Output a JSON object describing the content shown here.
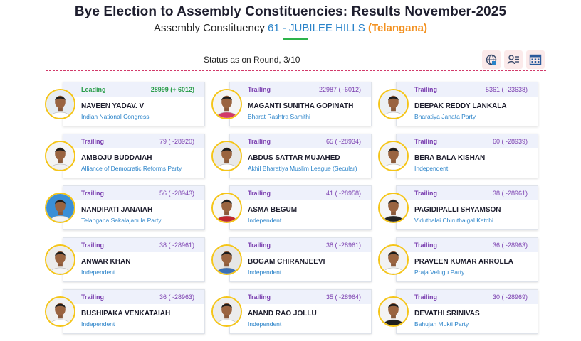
{
  "header": {
    "title": "Bye Election to Assembly Constituencies: Results November-2025",
    "subtitle_prefix": "Assembly Constituency",
    "constituency": "61 - JUBILEE HILLS",
    "state": "(Telangana)"
  },
  "status": {
    "label": "Status as on Round,",
    "round": "3/10"
  },
  "toolbar": [
    {
      "icon": "globe-chart-icon"
    },
    {
      "icon": "user-list-icon"
    },
    {
      "icon": "calendar-grid-icon"
    }
  ],
  "candidates": [
    {
      "status": "Leading",
      "votes": "28999 (+ 6012)",
      "name": "NAVEEN YADAV. V",
      "party": "Indian National Congress",
      "shirt": "#ffffff",
      "bg": "#e6ecf2"
    },
    {
      "status": "Trailing",
      "votes": "22987 ( -6012)",
      "name": "MAGANTI SUNITHA GOPINATH",
      "party": "Bharat Rashtra Samithi",
      "shirt": "#d23a6a",
      "bg": "#f4f4f4"
    },
    {
      "status": "Trailing",
      "votes": "5361 ( -23638)",
      "name": "DEEPAK REDDY LANKALA",
      "party": "Bharatiya Janata Party",
      "shirt": "#ffffff",
      "bg": "#ecf0f4"
    },
    {
      "status": "Trailing",
      "votes": "79 ( -28920)",
      "name": "AMBOJU BUDDAIAH",
      "party": "Alliance of Democratic Reforms Party",
      "shirt": "#f0f0f0",
      "bg": "#f4f4f4"
    },
    {
      "status": "Trailing",
      "votes": "65 ( -28934)",
      "name": "ABDUS SATTAR MUJAHED",
      "party": "Akhil Bharatiya Muslim League (Secular)",
      "shirt": "#ffffff",
      "bg": "#e8e8e8"
    },
    {
      "status": "Trailing",
      "votes": "60 ( -28939)",
      "name": "BERA BALA KISHAN",
      "party": "Independent",
      "shirt": "#ffffff",
      "bg": "#f2f2f2"
    },
    {
      "status": "Trailing",
      "votes": "56 ( -28943)",
      "name": "NANDIPATI JANAIAH",
      "party": "Telangana Sakalajanula Party",
      "shirt": "#f2f2f2",
      "bg": "#3a8fd6"
    },
    {
      "status": "Trailing",
      "votes": "41 ( -28958)",
      "name": "ASMA BEGUM",
      "party": "Independent",
      "shirt": "#c0262e",
      "bg": "#f6f6f6"
    },
    {
      "status": "Trailing",
      "votes": "38 ( -28961)",
      "name": "PAGIDIPALLI SHYAMSON",
      "party": "Viduthalai Chiruthaigal Katchi",
      "shirt": "#222222",
      "bg": "#f6f6f6"
    },
    {
      "status": "Trailing",
      "votes": "38 ( -28961)",
      "name": "ANWAR KHAN",
      "party": "Independent",
      "shirt": "#f4f4f4",
      "bg": "#ececec"
    },
    {
      "status": "Trailing",
      "votes": "38 ( -28961)",
      "name": "BOGAM CHIRANJEEVI",
      "party": "Independent",
      "shirt": "#3a6fb5",
      "bg": "#e6e6e6"
    },
    {
      "status": "Trailing",
      "votes": "36 ( -28963)",
      "name": "PRAVEEN KUMAR ARROLLA",
      "party": "Praja Velugu Party",
      "shirt": "#ffffff",
      "bg": "#f2f2f2"
    },
    {
      "status": "Trailing",
      "votes": "36 ( -28963)",
      "name": "BUSHIPAKA VENKATAIAH",
      "party": "Independent",
      "shirt": "#ffffff",
      "bg": "#f0f0f0"
    },
    {
      "status": "Trailing",
      "votes": "35 ( -28964)",
      "name": "ANAND RAO JOLLU",
      "party": "Independent",
      "shirt": "#ffffff",
      "bg": "#ececec"
    },
    {
      "status": "Trailing",
      "votes": "30 ( -28969)",
      "name": "DEVATHI SRINIVAS",
      "party": "Bahujan Mukti Party",
      "shirt": "#1e1e1e",
      "bg": "#f4f4f4"
    }
  ],
  "colors": {
    "accent_blue": "#2a83c9",
    "state_orange": "#f39222",
    "leading_green": "#2a9d4a",
    "trailing_purple": "#7b3fb0",
    "divider_pink": "#d23a6a"
  }
}
